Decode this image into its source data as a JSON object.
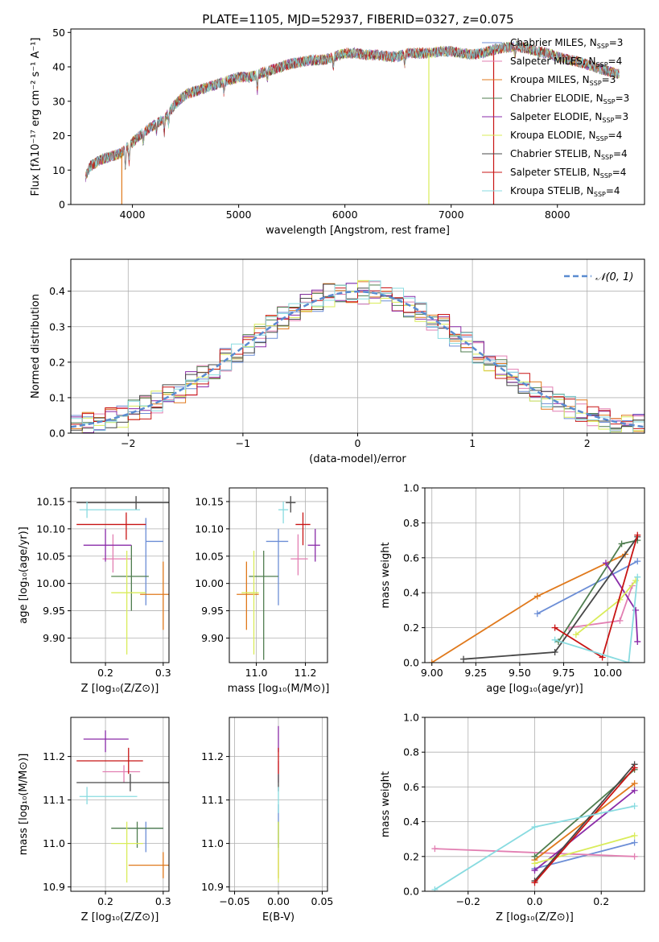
{
  "figure_title": "PLATE=1105, MJD=52937, FIBERID=0327, z=0.075",
  "colors": {
    "Chabrier MILES": "#6c8ed6",
    "Salpeter MILES": "#e27fb2",
    "Kroupa MILES": "#e0791c",
    "Chabrier ELODIE": "#4f7d4f",
    "Salpeter ELODIE": "#8a2ba8",
    "Kroupa ELODIE": "#d9ec5a",
    "Chabrier STELIB": "#474747",
    "Salpeter STELIB": "#c81414",
    "Kroupa STELIB": "#88dbe0"
  },
  "chart_data": [
    {
      "id": "spectrum",
      "type": "line",
      "title": "PLATE=1105, MJD=52937, FIBERID=0327, z=0.075",
      "xlabel": "wavelength [Angstrom, rest frame]",
      "ylabel": "Flux [fλ10⁻¹⁷ erg cm⁻² s⁻¹ A⁻¹]",
      "xlim": [
        3420,
        8820
      ],
      "ylim": [
        0,
        51
      ],
      "xticks": [
        4000,
        5000,
        6000,
        7000,
        8000
      ],
      "yticks": [
        0,
        10,
        20,
        30,
        40,
        50
      ],
      "grid": false,
      "legend_position": "right",
      "continuum_x": [
        3560,
        3600,
        3700,
        3800,
        3900,
        4000,
        4100,
        4200,
        4300,
        4400,
        4500,
        4600,
        4700,
        4800,
        4900,
        5000,
        5100,
        5200,
        5300,
        5400,
        5500,
        5600,
        5700,
        5800,
        5900,
        6000,
        6100,
        6200,
        6300,
        6400,
        6500,
        6600,
        6700,
        6800,
        6900,
        7000,
        7100,
        7200,
        7300,
        7400,
        7500,
        7600,
        7700,
        7800,
        7900,
        8000,
        8100,
        8200,
        8300,
        8400,
        8500,
        8580
      ],
      "continuum_y": [
        8,
        11,
        13,
        14,
        15,
        18,
        21,
        23,
        25,
        29,
        32,
        33,
        34,
        35,
        36,
        37,
        37,
        38,
        39,
        40,
        41,
        41.5,
        42,
        42,
        43,
        44,
        44,
        43.5,
        43.5,
        43,
        43,
        44,
        44,
        44,
        44.5,
        44.5,
        44,
        43.5,
        44,
        45,
        45.5,
        46,
        45.5,
        44.5,
        44,
        43,
        42,
        41.5,
        40.5,
        39.5,
        38.5,
        38
      ],
      "spikes": [
        {
          "x": 3900,
          "series": "Kroupa MILES"
        },
        {
          "x": 6790,
          "series": "Kroupa ELODIE"
        },
        {
          "x": 7400,
          "series": "Salpeter STELIB"
        }
      ],
      "series": [
        {
          "name": "Chabrier MILES",
          "nssp": 3
        },
        {
          "name": "Salpeter MILES",
          "nssp": 4
        },
        {
          "name": "Kroupa MILES",
          "nssp": 3
        },
        {
          "name": "Chabrier ELODIE",
          "nssp": 3
        },
        {
          "name": "Salpeter ELODIE",
          "nssp": 3
        },
        {
          "name": "Kroupa ELODIE",
          "nssp": 4
        },
        {
          "name": "Chabrier STELIB",
          "nssp": 4
        },
        {
          "name": "Salpeter STELIB",
          "nssp": 4
        },
        {
          "name": "Kroupa STELIB",
          "nssp": 4
        }
      ]
    },
    {
      "id": "residuals",
      "type": "bar",
      "xlabel": "(data-model)/error",
      "ylabel": "Normed distribution",
      "xlim": [
        -2.5,
        2.5
      ],
      "ylim": [
        0,
        0.49
      ],
      "xticks": [
        -2,
        -1,
        0,
        1,
        2
      ],
      "yticks": [
        0.0,
        0.1,
        0.2,
        0.3,
        0.4
      ],
      "grid": true,
      "bin_width": 0.1,
      "legend": [
        {
          "label": "𝒩(0, 1)",
          "style": "dashed"
        }
      ],
      "legend_position": "top-right",
      "reference_curve": "standard normal",
      "reference_color": "#5a8bd0"
    },
    {
      "id": "age_vs_Z",
      "type": "scatter",
      "xlabel": "Z [log₁₀(Z/Z⊙)]",
      "ylabel": "age  [log₁₀(age/yr)]",
      "xlim": [
        0.14,
        0.31
      ],
      "ylim": [
        9.855,
        10.175
      ],
      "xticks": [
        0.2,
        0.3
      ],
      "yticks": [
        9.9,
        9.95,
        10.0,
        10.05,
        10.1,
        10.15
      ],
      "grid": true,
      "points": [
        {
          "series": "Chabrier MILES",
          "x": 0.27,
          "y": 10.077,
          "xerr": [
            0.27,
            0.3
          ],
          "yerr": [
            9.96,
            10.12
          ]
        },
        {
          "series": "Salpeter MILES",
          "x": 0.213,
          "y": 10.045,
          "xerr": [
            0.195,
            0.245
          ],
          "yerr": [
            10.02,
            10.09
          ]
        },
        {
          "series": "Kroupa MILES",
          "x": 0.3,
          "y": 9.98,
          "xerr": [
            0.26,
            0.31
          ],
          "yerr": [
            9.915,
            10.04
          ]
        },
        {
          "series": "Chabrier ELODIE",
          "x": 0.245,
          "y": 10.013,
          "xerr": [
            0.21,
            0.275
          ],
          "yerr": [
            9.95,
            10.07
          ]
        },
        {
          "series": "Salpeter ELODIE",
          "x": 0.2,
          "y": 10.07,
          "xerr": [
            0.162,
            0.245
          ],
          "yerr": [
            10.04,
            10.1
          ]
        },
        {
          "series": "Kroupa ELODIE",
          "x": 0.237,
          "y": 9.983,
          "xerr": [
            0.21,
            0.27
          ],
          "yerr": [
            9.87,
            10.06
          ]
        },
        {
          "series": "Chabrier STELIB",
          "x": 0.253,
          "y": 10.148,
          "xerr": [
            0.15,
            0.31
          ],
          "yerr": [
            10.135,
            10.16
          ]
        },
        {
          "series": "Salpeter STELIB",
          "x": 0.236,
          "y": 10.108,
          "xerr": [
            0.15,
            0.27
          ],
          "yerr": [
            10.08,
            10.13
          ]
        },
        {
          "series": "Kroupa STELIB",
          "x": 0.168,
          "y": 10.135,
          "xerr": [
            0.155,
            0.26
          ],
          "yerr": [
            10.12,
            10.15
          ]
        }
      ]
    },
    {
      "id": "age_vs_mass",
      "type": "scatter",
      "xlabel": "mass [log₁₀(M/M⊙)]",
      "ylabel": "",
      "xlim": [
        10.89,
        11.29
      ],
      "ylim": [
        9.855,
        10.175
      ],
      "xticks": [
        11.0,
        11.2
      ],
      "yticks": [
        9.9,
        9.95,
        10.0,
        10.05,
        10.1,
        10.15
      ],
      "grid": true,
      "points": [
        {
          "series": "Chabrier MILES",
          "x": 11.09,
          "y": 10.077,
          "xerr": [
            11.04,
            11.13
          ],
          "yerr": [
            9.96,
            10.1
          ]
        },
        {
          "series": "Salpeter MILES",
          "x": 11.17,
          "y": 10.045,
          "xerr": [
            11.14,
            11.21
          ],
          "yerr": [
            10.015,
            10.09
          ]
        },
        {
          "series": "Kroupa MILES",
          "x": 10.96,
          "y": 9.98,
          "xerr": [
            10.92,
            11.01
          ],
          "yerr": [
            9.915,
            10.04
          ]
        },
        {
          "series": "Chabrier ELODIE",
          "x": 11.03,
          "y": 10.013,
          "xerr": [
            10.97,
            11.09
          ],
          "yerr": [
            9.86,
            10.06
          ]
        },
        {
          "series": "Salpeter ELODIE",
          "x": 11.24,
          "y": 10.07,
          "xerr": [
            11.21,
            11.26
          ],
          "yerr": [
            10.04,
            10.1
          ]
        },
        {
          "series": "Kroupa ELODIE",
          "x": 10.99,
          "y": 9.983,
          "xerr": [
            10.94,
            11.01
          ],
          "yerr": [
            9.87,
            10.06
          ]
        },
        {
          "series": "Chabrier STELIB",
          "x": 11.14,
          "y": 10.148,
          "xerr": [
            11.12,
            11.16
          ],
          "yerr": [
            10.13,
            10.16
          ]
        },
        {
          "series": "Salpeter STELIB",
          "x": 11.19,
          "y": 10.108,
          "xerr": [
            11.16,
            11.22
          ],
          "yerr": [
            10.07,
            10.13
          ]
        },
        {
          "series": "Kroupa STELIB",
          "x": 11.11,
          "y": 10.135,
          "xerr": [
            11.09,
            11.13
          ],
          "yerr": [
            10.11,
            10.15
          ]
        }
      ]
    },
    {
      "id": "mass_weight_vs_age",
      "type": "line",
      "xlabel": "age  [log₁₀(age/yr)]",
      "ylabel": "mass weight",
      "xlim": [
        8.96,
        10.21
      ],
      "ylim": [
        0,
        1
      ],
      "xticks": [
        9.0,
        9.25,
        9.5,
        9.75,
        10.0
      ],
      "yticks": [
        0.0,
        0.2,
        0.4,
        0.6,
        0.8,
        1.0
      ],
      "grid": true,
      "series": [
        {
          "name": "Chabrier MILES",
          "x": [
            9.6,
            10.17
          ],
          "y": [
            0.28,
            0.58
          ]
        },
        {
          "name": "Salpeter MILES",
          "x": [
            9.78,
            10.07,
            10.14
          ],
          "y": [
            0.2,
            0.24,
            0.44
          ]
        },
        {
          "name": "Kroupa MILES",
          "x": [
            9.0,
            9.6,
            10.1
          ],
          "y": [
            0.0,
            0.38,
            0.62
          ]
        },
        {
          "name": "Chabrier ELODIE",
          "x": [
            9.72,
            10.08,
            10.17
          ],
          "y": [
            0.12,
            0.68,
            0.7
          ]
        },
        {
          "name": "Salpeter ELODIE",
          "x": [
            9.99,
            10.16,
            10.17
          ],
          "y": [
            0.57,
            0.3,
            0.12
          ]
        },
        {
          "name": "Kroupa ELODIE",
          "x": [
            9.82,
            10.07,
            10.16
          ],
          "y": [
            0.16,
            0.36,
            0.47
          ]
        },
        {
          "name": "Chabrier STELIB",
          "x": [
            9.18,
            9.7,
            10.17
          ],
          "y": [
            0.02,
            0.06,
            0.72
          ]
        },
        {
          "name": "Salpeter STELIB",
          "x": [
            9.7,
            9.97,
            10.17
          ],
          "y": [
            0.2,
            0.03,
            0.73
          ]
        },
        {
          "name": "Kroupa STELIB",
          "x": [
            9.7,
            10.12,
            10.17
          ],
          "y": [
            0.13,
            0.0,
            0.49
          ]
        }
      ]
    },
    {
      "id": "mass_vs_Z",
      "type": "scatter",
      "xlabel": "Z [log₁₀(Z/Z⊙)]",
      "ylabel": "mass [log₁₀(M/M⊙)]",
      "xlim": [
        0.14,
        0.31
      ],
      "ylim": [
        10.89,
        11.29
      ],
      "xticks": [
        0.2,
        0.3
      ],
      "yticks": [
        10.9,
        11.0,
        11.1,
        11.2
      ],
      "grid": true,
      "points": [
        {
          "series": "Chabrier MILES",
          "x": 0.27,
          "y": 11.035,
          "xerr": [
            0.24,
            0.3
          ],
          "yerr": [
            10.98,
            11.05
          ]
        },
        {
          "series": "Salpeter MILES",
          "x": 0.232,
          "y": 11.165,
          "xerr": [
            0.195,
            0.26
          ],
          "yerr": [
            11.14,
            11.18
          ]
        },
        {
          "series": "Kroupa MILES",
          "x": 0.3,
          "y": 10.95,
          "xerr": [
            0.24,
            0.31
          ],
          "yerr": [
            10.92,
            10.98
          ]
        },
        {
          "series": "Chabrier ELODIE",
          "x": 0.255,
          "y": 11.035,
          "xerr": [
            0.21,
            0.3
          ],
          "yerr": [
            10.99,
            11.05
          ]
        },
        {
          "series": "Salpeter ELODIE",
          "x": 0.2,
          "y": 11.24,
          "xerr": [
            0.162,
            0.24
          ],
          "yerr": [
            11.21,
            11.26
          ]
        },
        {
          "series": "Kroupa ELODIE",
          "x": 0.237,
          "y": 11.0,
          "xerr": [
            0.21,
            0.265
          ],
          "yerr": [
            10.91,
            11.05
          ]
        },
        {
          "series": "Chabrier STELIB",
          "x": 0.243,
          "y": 11.14,
          "xerr": [
            0.15,
            0.31
          ],
          "yerr": [
            11.12,
            11.16
          ]
        },
        {
          "series": "Salpeter STELIB",
          "x": 0.24,
          "y": 11.19,
          "xerr": [
            0.15,
            0.265
          ],
          "yerr": [
            11.16,
            11.22
          ]
        },
        {
          "series": "Kroupa STELIB",
          "x": 0.168,
          "y": 11.108,
          "xerr": [
            0.155,
            0.255
          ],
          "yerr": [
            11.09,
            11.13
          ]
        }
      ]
    },
    {
      "id": "mass_vs_ebv",
      "type": "scatter",
      "xlabel": "E(B-V)",
      "ylabel": "",
      "xlim": [
        -0.056,
        0.056
      ],
      "ylim": [
        10.89,
        11.29
      ],
      "xticks": [
        -0.05,
        0.0,
        0.05
      ],
      "yticks": [
        10.9,
        11.0,
        11.1,
        11.2
      ],
      "grid": true,
      "points": [
        {
          "series": "Chabrier MILES",
          "x": 0.0,
          "y": 11.035,
          "yerr": [
            10.98,
            11.09
          ]
        },
        {
          "series": "Salpeter MILES",
          "x": 0.0,
          "y": 11.165,
          "yerr": [
            11.14,
            11.19
          ]
        },
        {
          "series": "Kroupa MILES",
          "x": 0.0,
          "y": 10.95,
          "yerr": [
            10.92,
            10.98
          ]
        },
        {
          "series": "Chabrier ELODIE",
          "x": 0.0,
          "y": 11.035,
          "yerr": [
            10.99,
            11.05
          ]
        },
        {
          "series": "Salpeter ELODIE",
          "x": 0.0,
          "y": 11.24,
          "yerr": [
            11.21,
            11.27
          ]
        },
        {
          "series": "Kroupa ELODIE",
          "x": 0.0,
          "y": 11.0,
          "yerr": [
            10.91,
            11.05
          ]
        },
        {
          "series": "Chabrier STELIB",
          "x": 0.0,
          "y": 11.14,
          "yerr": [
            11.12,
            11.16
          ]
        },
        {
          "series": "Salpeter STELIB",
          "x": 0.0,
          "y": 11.19,
          "yerr": [
            11.16,
            11.22
          ]
        },
        {
          "series": "Kroupa STELIB",
          "x": 0.0,
          "y": 11.108,
          "yerr": [
            11.07,
            11.13
          ]
        }
      ]
    },
    {
      "id": "mass_weight_vs_Z",
      "type": "line",
      "xlabel": "Z [log₁₀(Z/Z⊙)]",
      "ylabel": "mass weight",
      "xlim": [
        -0.33,
        0.33
      ],
      "ylim": [
        0,
        1
      ],
      "xticks": [
        -0.2,
        0.0,
        0.2
      ],
      "yticks": [
        0.0,
        0.2,
        0.4,
        0.6,
        0.8,
        1.0
      ],
      "grid": true,
      "series": [
        {
          "name": "Chabrier MILES",
          "x": [
            0.0,
            0.3
          ],
          "y": [
            0.13,
            0.28
          ]
        },
        {
          "name": "Salpeter MILES",
          "x": [
            -0.3,
            0.3
          ],
          "y": [
            0.245,
            0.2
          ]
        },
        {
          "name": "Kroupa MILES",
          "x": [
            0.0,
            0.3
          ],
          "y": [
            0.18,
            0.62
          ]
        },
        {
          "name": "Chabrier ELODIE",
          "x": [
            0.0,
            0.3
          ],
          "y": [
            0.2,
            0.7
          ]
        },
        {
          "name": "Salpeter ELODIE",
          "x": [
            0.0,
            0.3
          ],
          "y": [
            0.12,
            0.58
          ]
        },
        {
          "name": "Kroupa ELODIE",
          "x": [
            0.0,
            0.3
          ],
          "y": [
            0.16,
            0.32
          ]
        },
        {
          "name": "Chabrier STELIB",
          "x": [
            0.0,
            0.3
          ],
          "y": [
            0.06,
            0.73
          ]
        },
        {
          "name": "Salpeter STELIB",
          "x": [
            0.0,
            0.3
          ],
          "y": [
            0.05,
            0.71
          ]
        },
        {
          "name": "Kroupa STELIB",
          "x": [
            -0.3,
            0.0,
            0.3
          ],
          "y": [
            0.01,
            0.37,
            0.49
          ]
        }
      ]
    }
  ]
}
